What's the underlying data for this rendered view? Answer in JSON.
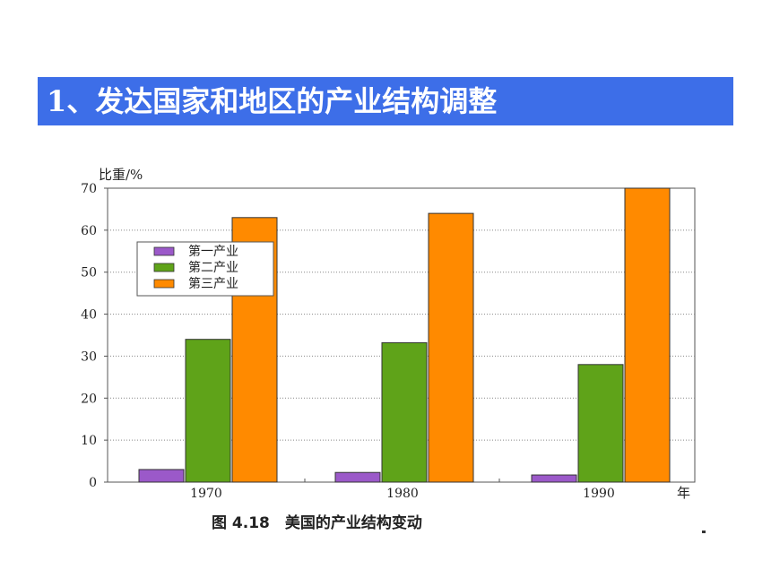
{
  "slide": {
    "title_number": "1、",
    "title_text": "发达国家和地区的产业结构调整"
  },
  "chart_data": {
    "type": "bar",
    "title": "图 4.18　美国的产业结构变动",
    "ylabel": "比重/%",
    "xlabel": "年",
    "categories": [
      "1970",
      "1980",
      "1990"
    ],
    "series": [
      {
        "name": "第一产业",
        "color": "#9b59c9",
        "values": [
          3,
          2.3,
          1.7
        ]
      },
      {
        "name": "第二产业",
        "color": "#5fa319",
        "values": [
          34,
          33.2,
          28
        ]
      },
      {
        "name": "第三产业",
        "color": "#ff8a00",
        "values": [
          63,
          64,
          70
        ]
      }
    ],
    "ylim": [
      0,
      70
    ],
    "yticks": [
      0,
      10,
      20,
      30,
      40,
      50,
      60,
      70
    ],
    "grid": true,
    "legend": "top-left"
  }
}
